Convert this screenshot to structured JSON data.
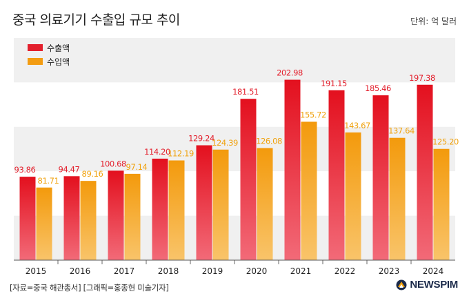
{
  "header": {
    "title": "중국 의료기기 수출입 규모 추이",
    "unit": "단위: 억 달러"
  },
  "footer": {
    "source": "[자료=중국 해관총서] [그래픽=홍종현 미술기자]",
    "logo": "NEWSPIM"
  },
  "colors": {
    "export": "#e3202d",
    "import": "#f39c12",
    "export_label": "#e3202d",
    "import_label": "#f0a20e"
  },
  "chart_data": {
    "type": "bar",
    "categories": [
      "2015",
      "2016",
      "2017",
      "2018",
      "2019",
      "2020",
      "2021",
      "2022",
      "2023",
      "2024"
    ],
    "series": [
      {
        "name": "수출액",
        "values": [
          93.86,
          94.47,
          100.68,
          114.2,
          129.24,
          181.51,
          202.98,
          191.15,
          185.46,
          197.38
        ]
      },
      {
        "name": "수입액",
        "values": [
          81.71,
          89.16,
          97.14,
          112.19,
          124.39,
          126.08,
          155.72,
          143.67,
          137.64,
          125.2
        ]
      }
    ],
    "ylim": [
      0,
      250
    ],
    "legend_position": "top-left"
  }
}
